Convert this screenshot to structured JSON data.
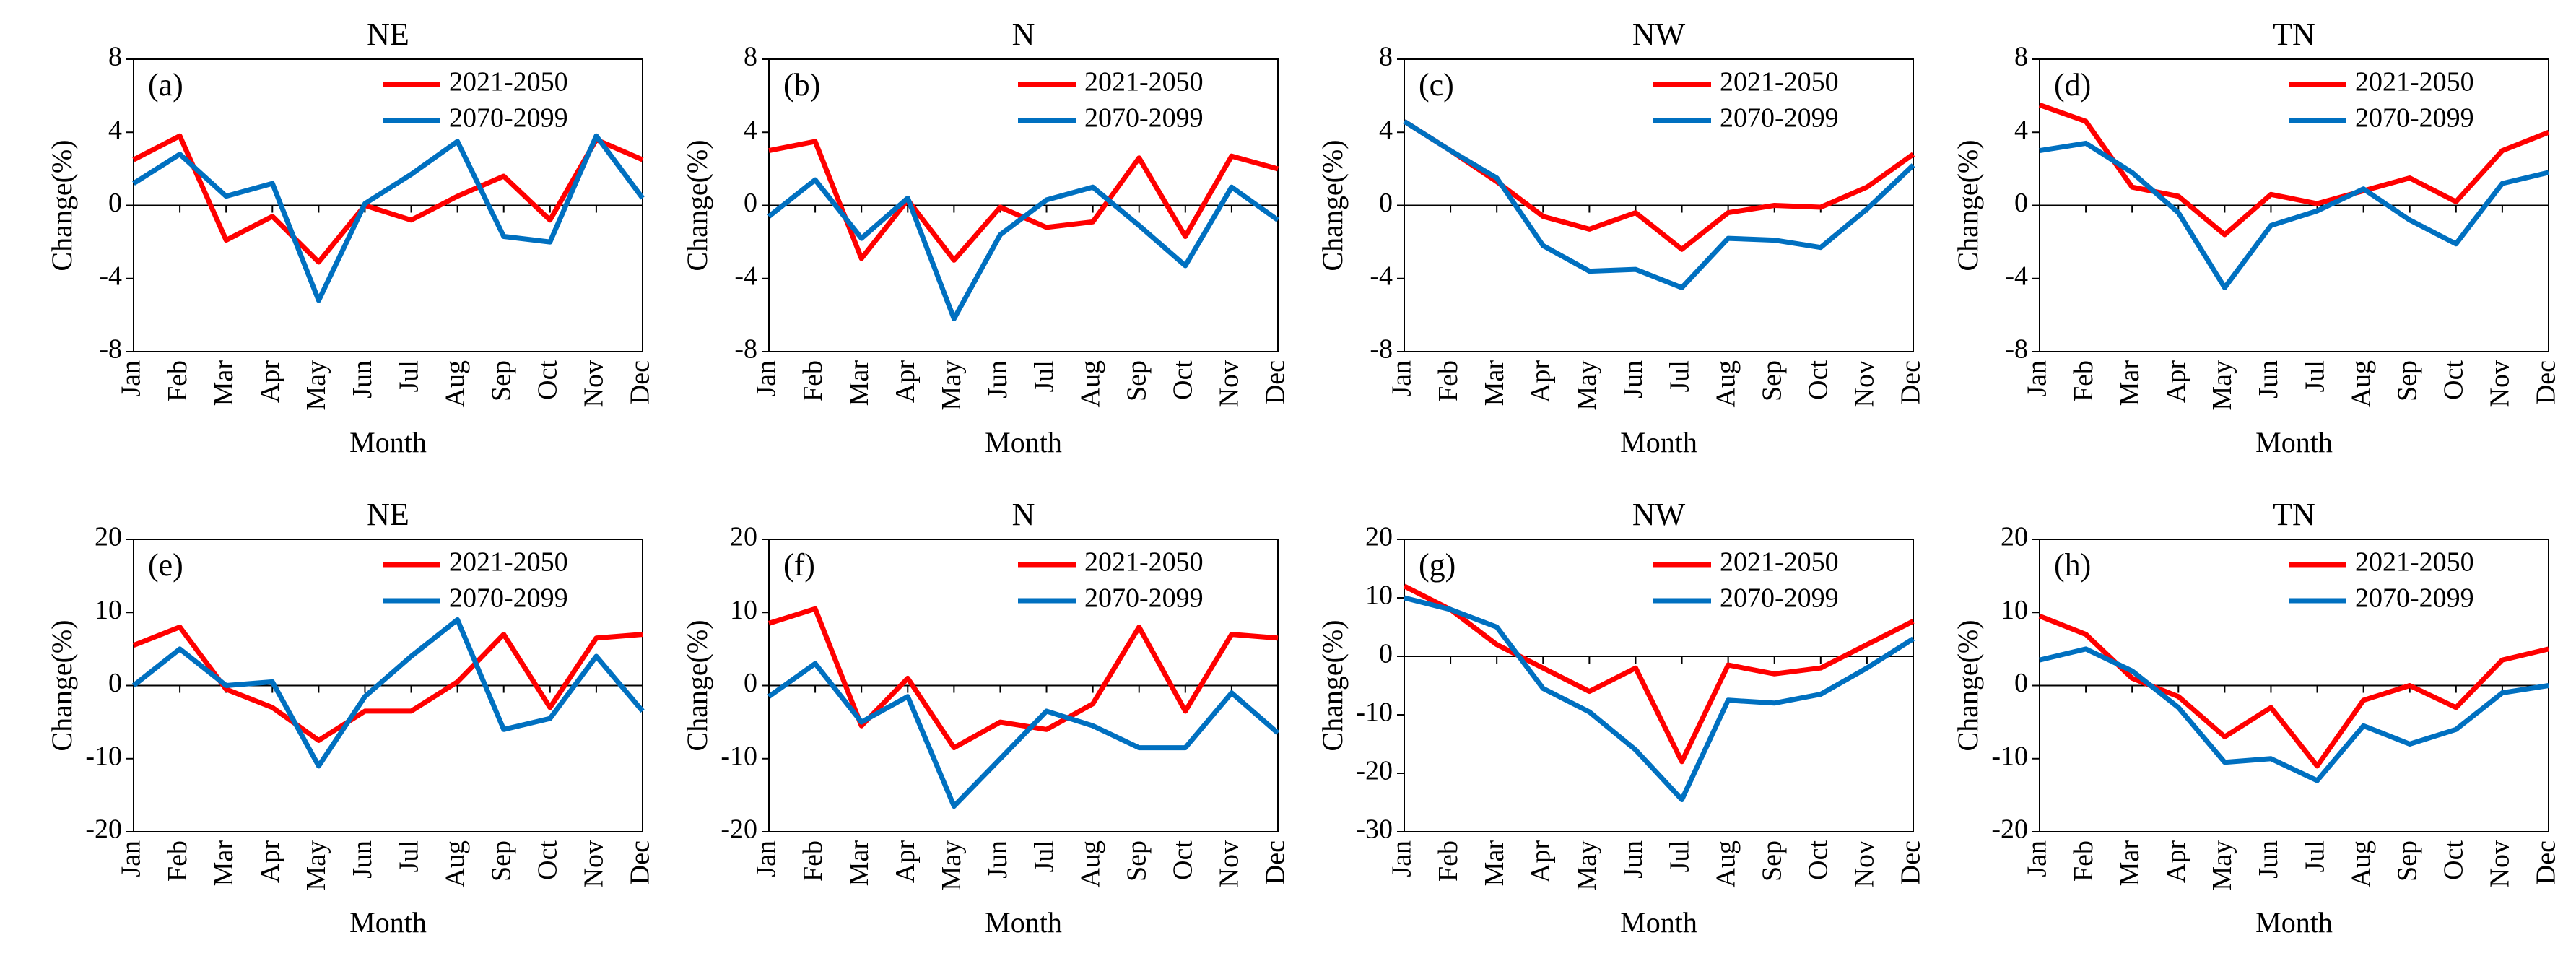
{
  "chart_data": [
    {
      "type": "line",
      "title": "NE",
      "label": "(a)",
      "xlabel": "Month",
      "ylabel": "Change(%)",
      "categories": [
        "Jan",
        "Feb",
        "Mar",
        "Apr",
        "May",
        "Jun",
        "Jul",
        "Aug",
        "Sep",
        "Oct",
        "Nov",
        "Dec"
      ],
      "series": [
        {
          "name": "2021-2050",
          "color": "#ff0000",
          "values": [
            2.5,
            3.8,
            -1.9,
            -0.6,
            -3.1,
            0,
            -0.8,
            0.5,
            1.6,
            -0.8,
            3.6,
            2.5
          ]
        },
        {
          "name": "2070-2099",
          "color": "#0070c0",
          "values": [
            1.2,
            2.8,
            0.5,
            1.2,
            -5.2,
            0.1,
            1.7,
            3.5,
            -1.7,
            -2.0,
            3.8,
            0.4
          ]
        }
      ],
      "ylim": [
        -8,
        8
      ],
      "yticks": [
        -8,
        -4,
        0,
        4,
        8
      ],
      "legend": "upper right"
    },
    {
      "type": "line",
      "title": "N",
      "label": "(b)",
      "xlabel": "Month",
      "ylabel": "Change(%)",
      "categories": [
        "Jan",
        "Feb",
        "Mar",
        "Apr",
        "May",
        "Jun",
        "Jul",
        "Aug",
        "Sep",
        "Oct",
        "Nov",
        "Dec"
      ],
      "series": [
        {
          "name": "2021-2050",
          "color": "#ff0000",
          "values": [
            3.0,
            3.5,
            -2.9,
            0.3,
            -3.0,
            -0.1,
            -1.2,
            -0.9,
            2.6,
            -1.7,
            2.7,
            2.0
          ]
        },
        {
          "name": "2070-2099",
          "color": "#0070c0",
          "values": [
            -0.6,
            1.4,
            -1.8,
            0.4,
            -6.2,
            -1.6,
            0.3,
            1.0,
            -1.1,
            -3.3,
            1.0,
            -0.8
          ]
        }
      ],
      "ylim": [
        -8,
        8
      ],
      "yticks": [
        -8,
        -4,
        0,
        4,
        8
      ],
      "legend": "upper right"
    },
    {
      "type": "line",
      "title": "NW",
      "label": "(c)",
      "xlabel": "Month",
      "ylabel": "Change(%)",
      "categories": [
        "Jan",
        "Feb",
        "Mar",
        "Apr",
        "May",
        "Jun",
        "Jul",
        "Aug",
        "Sep",
        "Oct",
        "Nov",
        "Dec"
      ],
      "series": [
        {
          "name": "2021-2050",
          "color": "#ff0000",
          "values": [
            4.6,
            3.0,
            1.3,
            -0.6,
            -1.3,
            -0.4,
            -2.4,
            -0.4,
            0,
            -0.1,
            1.0,
            2.8
          ]
        },
        {
          "name": "2070-2099",
          "color": "#0070c0",
          "values": [
            4.6,
            3.0,
            1.5,
            -2.2,
            -3.6,
            -3.5,
            -4.5,
            -1.8,
            -1.9,
            -2.3,
            -0.2,
            2.2
          ]
        }
      ],
      "ylim": [
        -8,
        8
      ],
      "yticks": [
        -8,
        -4,
        0,
        4,
        8
      ],
      "legend": "upper right"
    },
    {
      "type": "line",
      "title": "TN",
      "label": "(d)",
      "xlabel": "Month",
      "ylabel": "Change(%)",
      "categories": [
        "Jan",
        "Feb",
        "Mar",
        "Apr",
        "May",
        "Jun",
        "Jul",
        "Aug",
        "Sep",
        "Oct",
        "Nov",
        "Dec"
      ],
      "series": [
        {
          "name": "2021-2050",
          "color": "#ff0000",
          "values": [
            5.5,
            4.6,
            1.0,
            0.5,
            -1.6,
            0.6,
            0.1,
            0.8,
            1.5,
            0.2,
            3.0,
            4.0
          ]
        },
        {
          "name": "2070-2099",
          "color": "#0070c0",
          "values": [
            3.0,
            3.4,
            1.8,
            -0.4,
            -4.5,
            -1.1,
            -0.3,
            0.9,
            -0.8,
            -2.1,
            1.2,
            1.8
          ]
        }
      ],
      "ylim": [
        -8,
        8
      ],
      "yticks": [
        -8,
        -4,
        0,
        4,
        8
      ],
      "legend": "upper right"
    },
    {
      "type": "line",
      "title": "NE",
      "label": "(e)",
      "xlabel": "Month",
      "ylabel": "Change(%)",
      "categories": [
        "Jan",
        "Feb",
        "Mar",
        "Apr",
        "May",
        "Jun",
        "Jul",
        "Aug",
        "Sep",
        "Oct",
        "Nov",
        "Dec"
      ],
      "series": [
        {
          "name": "2021-2050",
          "color": "#ff0000",
          "values": [
            5.5,
            8,
            -0.5,
            -3,
            -7.5,
            -3.5,
            -3.5,
            0.5,
            7,
            -3,
            6.5,
            7
          ]
        },
        {
          "name": "2070-2099",
          "color": "#0070c0",
          "values": [
            0,
            5,
            0,
            0.5,
            -11,
            -1.5,
            4,
            9,
            -6,
            -4.5,
            4,
            -3.5
          ]
        }
      ],
      "ylim": [
        -20,
        20
      ],
      "yticks": [
        -20,
        -10,
        0,
        10,
        20
      ],
      "legend": "upper right"
    },
    {
      "type": "line",
      "title": "N",
      "label": "(f)",
      "xlabel": "Month",
      "ylabel": "Change(%)",
      "categories": [
        "Jan",
        "Feb",
        "Mar",
        "Apr",
        "May",
        "Jun",
        "Jul",
        "Aug",
        "Sep",
        "Oct",
        "Nov",
        "Dec"
      ],
      "series": [
        {
          "name": "2021-2050",
          "color": "#ff0000",
          "values": [
            8.5,
            10.5,
            -5.5,
            1,
            -8.5,
            -5,
            -6,
            -2.5,
            8,
            -3.5,
            7,
            6.5
          ]
        },
        {
          "name": "2070-2099",
          "color": "#0070c0",
          "values": [
            -1.5,
            3,
            -5,
            -1.5,
            -16.5,
            -10,
            -3.5,
            -5.5,
            -8.5,
            -8.5,
            -1,
            -6.5
          ]
        }
      ],
      "ylim": [
        -20,
        20
      ],
      "yticks": [
        -20,
        -10,
        0,
        10,
        20
      ],
      "legend": "upper right"
    },
    {
      "type": "line",
      "title": "NW",
      "label": "(g)",
      "xlabel": "Month",
      "ylabel": "Change(%)",
      "categories": [
        "Jan",
        "Feb",
        "Mar",
        "Apr",
        "May",
        "Jun",
        "Jul",
        "Aug",
        "Sep",
        "Oct",
        "Nov",
        "Dec"
      ],
      "series": [
        {
          "name": "2021-2050",
          "color": "#ff0000",
          "values": [
            12,
            8,
            2,
            -2,
            -6,
            -2,
            -18,
            -1.5,
            -3,
            -2,
            2,
            6
          ]
        },
        {
          "name": "2070-2099",
          "color": "#0070c0",
          "values": [
            10,
            8,
            5,
            -5.5,
            -9.5,
            -16,
            -24.5,
            -7.5,
            -8,
            -6.5,
            -2,
            3
          ]
        }
      ],
      "ylim": [
        -30,
        20
      ],
      "yticks": [
        -30,
        -20,
        -10,
        0,
        10,
        20
      ],
      "legend": "upper right"
    },
    {
      "type": "line",
      "title": "TN",
      "label": "(h)",
      "xlabel": "Month",
      "ylabel": "Change(%)",
      "categories": [
        "Jan",
        "Feb",
        "Mar",
        "Apr",
        "May",
        "Jun",
        "Jul",
        "Aug",
        "Sep",
        "Oct",
        "Nov",
        "Dec"
      ],
      "series": [
        {
          "name": "2021-2050",
          "color": "#ff0000",
          "values": [
            9.5,
            7,
            1,
            -1.5,
            -7,
            -3,
            -11,
            -2,
            0,
            -3,
            3.5,
            5
          ]
        },
        {
          "name": "2070-2099",
          "color": "#0070c0",
          "values": [
            3.5,
            5,
            2,
            -3,
            -10.5,
            -10,
            -13,
            -5.5,
            -8,
            -6,
            -1,
            0
          ]
        }
      ],
      "ylim": [
        -20,
        20
      ],
      "yticks": [
        -20,
        -10,
        0,
        10,
        20
      ],
      "legend": "upper right"
    }
  ]
}
